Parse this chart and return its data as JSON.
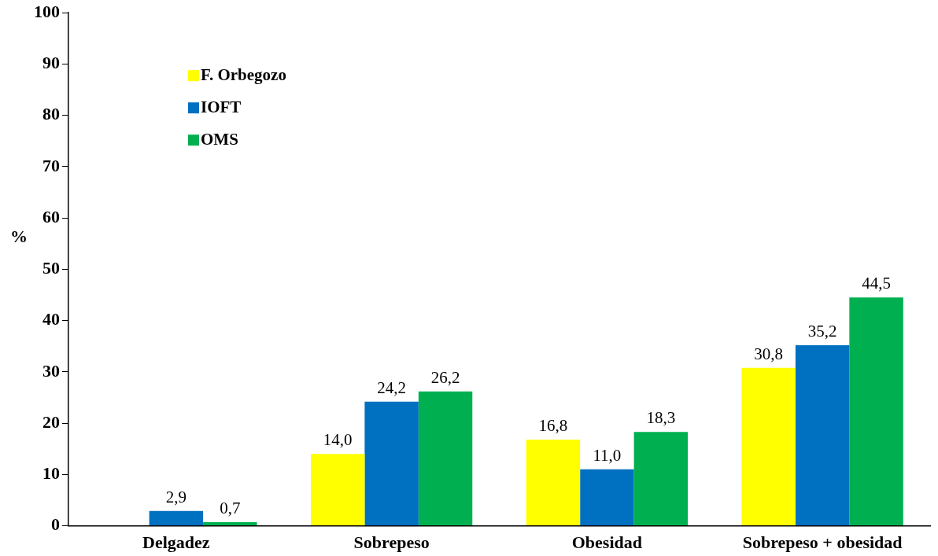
{
  "chart_data": {
    "type": "bar",
    "ylabel": "%",
    "categories": [
      "Delgadez",
      "Sobrepeso",
      "Obesidad",
      "Sobrepeso + obesidad"
    ],
    "series": [
      {
        "name": "F. Orbegozo",
        "color": "#ffff00",
        "values": [
          null,
          14.0,
          16.8,
          30.8
        ],
        "value_labels": [
          null,
          "14,0",
          "16,8",
          "30,8"
        ]
      },
      {
        "name": "IOFT",
        "color": "#0070c0",
        "values": [
          2.9,
          24.2,
          11.0,
          35.2
        ],
        "value_labels": [
          "2,9",
          "24,2",
          "11,0",
          "35,2"
        ]
      },
      {
        "name": "OMS",
        "color": "#00b050",
        "values": [
          0.7,
          26.2,
          18.3,
          44.5
        ],
        "value_labels": [
          "0,7",
          "26,2",
          "18,3",
          "44,5"
        ]
      }
    ],
    "ylim": [
      0,
      100
    ],
    "yticks": [
      0,
      10,
      20,
      30,
      40,
      50,
      60,
      70,
      80,
      90,
      100
    ],
    "grid": false,
    "legend": "top left"
  }
}
